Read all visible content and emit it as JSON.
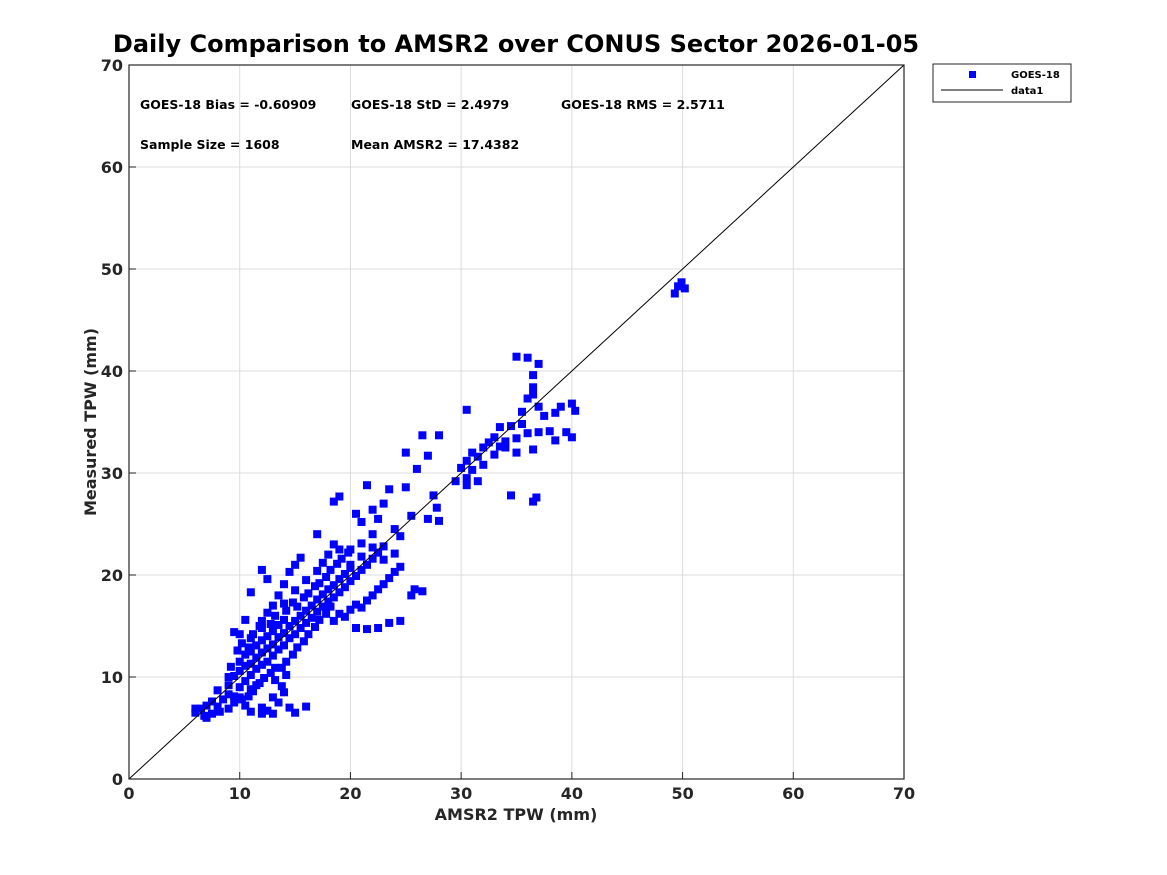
{
  "chart_data": {
    "type": "scatter",
    "title": "Daily Comparison to AMSR2 over CONUS Sector 2026-01-05",
    "xlabel": "AMSR2 TPW (mm)",
    "ylabel": "Measured TPW (mm)",
    "xlim": [
      0,
      70
    ],
    "ylim": [
      0,
      70
    ],
    "xticks": [
      "0",
      "10",
      "20",
      "30",
      "40",
      "50",
      "60",
      "70"
    ],
    "yticks": [
      "0",
      "10",
      "20",
      "30",
      "40",
      "50",
      "60",
      "70"
    ],
    "grid": true,
    "legend_position": "outside top-right",
    "legend": [
      {
        "name": "GOES-18",
        "kind": "marker"
      },
      {
        "name": "data1",
        "kind": "line"
      }
    ],
    "annotations": [
      "GOES-18 Bias = -0.60909",
      "GOES-18 StD = 2.4979",
      "GOES-18 RMS = 2.5711",
      "Sample Size = 1608",
      "Mean AMSR2 = 17.4382"
    ],
    "colors": {
      "marker": "#0000ff",
      "line": "#000000",
      "grid": "#dcdcdc",
      "axis": "#262626"
    },
    "reference_line": {
      "name": "data1",
      "x": [
        0,
        70
      ],
      "y": [
        0,
        70
      ]
    },
    "series": [
      {
        "name": "GOES-18",
        "marker": "square",
        "sample_size": 1608,
        "points": [
          [
            6.0,
            6.5
          ],
          [
            6.5,
            6.9
          ],
          [
            7.0,
            7.2
          ],
          [
            7.5,
            6.4
          ],
          [
            7.0,
            6.0
          ],
          [
            8.0,
            7.1
          ],
          [
            8.5,
            7.8
          ],
          [
            8.0,
            8.7
          ],
          [
            9.0,
            8.3
          ],
          [
            9.0,
            9.2
          ],
          [
            9.5,
            7.5
          ],
          [
            9.5,
            10.1
          ],
          [
            10.0,
            9.0
          ],
          [
            10.0,
            10.6
          ],
          [
            10.0,
            11.5
          ],
          [
            10.5,
            9.6
          ],
          [
            10.5,
            11.1
          ],
          [
            10.5,
            12.2
          ],
          [
            11.0,
            10.2
          ],
          [
            11.0,
            11.3
          ],
          [
            11.0,
            12.5
          ],
          [
            11.0,
            13.8
          ],
          [
            11.5,
            10.8
          ],
          [
            11.5,
            11.9
          ],
          [
            11.5,
            13.1
          ],
          [
            12.0,
            11.2
          ],
          [
            12.0,
            12.4
          ],
          [
            12.0,
            13.6
          ],
          [
            12.0,
            14.8
          ],
          [
            12.5,
            11.5
          ],
          [
            12.5,
            12.8
          ],
          [
            12.5,
            14.0
          ],
          [
            13.0,
            12.1
          ],
          [
            13.0,
            13.2
          ],
          [
            13.0,
            14.5
          ],
          [
            13.5,
            12.7
          ],
          [
            13.5,
            13.9
          ],
          [
            13.5,
            15.1
          ],
          [
            14.0,
            13.1
          ],
          [
            14.0,
            14.3
          ],
          [
            14.0,
            15.6
          ],
          [
            14.5,
            13.8
          ],
          [
            14.5,
            15.0
          ],
          [
            15.0,
            14.2
          ],
          [
            15.0,
            15.5
          ],
          [
            15.5,
            14.8
          ],
          [
            15.5,
            16.0
          ],
          [
            16.0,
            15.3
          ],
          [
            16.0,
            16.5
          ],
          [
            16.5,
            15.8
          ],
          [
            16.5,
            17.0
          ],
          [
            17.0,
            16.4
          ],
          [
            17.0,
            17.6
          ],
          [
            17.5,
            16.9
          ],
          [
            17.5,
            18.1
          ],
          [
            18.0,
            17.4
          ],
          [
            18.0,
            18.6
          ],
          [
            18.5,
            17.8
          ],
          [
            18.5,
            19.0
          ],
          [
            19.0,
            18.3
          ],
          [
            19.0,
            19.6
          ],
          [
            19.5,
            18.8
          ],
          [
            19.5,
            20.1
          ],
          [
            20.0,
            19.4
          ],
          [
            20.0,
            20.7
          ],
          [
            20.5,
            19.9
          ],
          [
            21.0,
            20.5
          ],
          [
            21.0,
            21.8
          ],
          [
            21.5,
            21.0
          ],
          [
            22.0,
            21.6
          ],
          [
            22.0,
            22.7
          ],
          [
            22.5,
            22.2
          ],
          [
            23.0,
            22.8
          ],
          [
            18.5,
            15.5
          ],
          [
            19.0,
            16.2
          ],
          [
            19.5,
            15.9
          ],
          [
            20.0,
            16.6
          ],
          [
            20.5,
            17.1
          ],
          [
            21.0,
            16.8
          ],
          [
            21.5,
            17.5
          ],
          [
            22.0,
            18.0
          ],
          [
            22.5,
            18.6
          ],
          [
            23.0,
            19.1
          ],
          [
            23.5,
            19.7
          ],
          [
            24.0,
            20.3
          ],
          [
            24.5,
            20.8
          ],
          [
            20.5,
            14.8
          ],
          [
            21.5,
            14.7
          ],
          [
            22.5,
            14.8
          ],
          [
            23.5,
            15.3
          ],
          [
            24.5,
            15.5
          ],
          [
            12.0,
            7.0
          ],
          [
            12.5,
            6.7
          ],
          [
            13.0,
            8.0
          ],
          [
            13.5,
            7.5
          ],
          [
            14.0,
            8.5
          ],
          [
            14.5,
            7.0
          ],
          [
            15.0,
            6.5
          ],
          [
            16.0,
            7.1
          ],
          [
            12.0,
            6.4
          ],
          [
            13.0,
            6.4
          ],
          [
            11.0,
            8.8
          ],
          [
            11.5,
            9.2
          ],
          [
            10.5,
            7.2
          ],
          [
            11.0,
            6.6
          ],
          [
            12.0,
            15.5
          ],
          [
            12.5,
            16.3
          ],
          [
            13.0,
            17.0
          ],
          [
            13.5,
            18.0
          ],
          [
            14.0,
            19.1
          ],
          [
            14.5,
            20.3
          ],
          [
            15.0,
            21.0
          ],
          [
            15.5,
            21.7
          ],
          [
            12.0,
            20.5
          ],
          [
            12.5,
            19.6
          ],
          [
            11.0,
            18.3
          ],
          [
            10.5,
            15.6
          ],
          [
            10.0,
            14.2
          ],
          [
            14.0,
            17.2
          ],
          [
            15.0,
            18.5
          ],
          [
            16.0,
            19.5
          ],
          [
            17.0,
            20.4
          ],
          [
            17.5,
            21.2
          ],
          [
            18.0,
            22.0
          ],
          [
            18.5,
            23.0
          ],
          [
            19.0,
            22.5
          ],
          [
            17.0,
            24.0
          ],
          [
            18.5,
            27.2
          ],
          [
            19.0,
            27.7
          ],
          [
            20.5,
            26.0
          ],
          [
            21.0,
            25.2
          ],
          [
            21.5,
            28.8
          ],
          [
            22.0,
            26.4
          ],
          [
            22.5,
            25.5
          ],
          [
            23.0,
            27.0
          ],
          [
            23.5,
            28.4
          ],
          [
            24.0,
            24.5
          ],
          [
            25.0,
            28.6
          ],
          [
            25.5,
            25.8
          ],
          [
            26.0,
            30.4
          ],
          [
            26.5,
            33.7
          ],
          [
            27.0,
            31.7
          ],
          [
            27.5,
            27.8
          ],
          [
            27.8,
            26.6
          ],
          [
            28.0,
            33.7
          ],
          [
            25.0,
            32.0
          ],
          [
            27.0,
            25.5
          ],
          [
            28.0,
            25.3
          ],
          [
            25.5,
            18.0
          ],
          [
            25.8,
            18.6
          ],
          [
            26.5,
            18.4
          ],
          [
            23.0,
            21.5
          ],
          [
            24.0,
            22.1
          ],
          [
            24.5,
            23.8
          ],
          [
            20.0,
            21.0
          ],
          [
            20.0,
            22.5
          ],
          [
            21.0,
            23.1
          ],
          [
            22.0,
            24.0
          ],
          [
            30.5,
            29.5
          ],
          [
            30.5,
            31.2
          ],
          [
            31.0,
            32.0
          ],
          [
            31.0,
            30.3
          ],
          [
            31.5,
            31.6
          ],
          [
            32.0,
            32.5
          ],
          [
            32.0,
            30.8
          ],
          [
            32.5,
            33.0
          ],
          [
            33.0,
            31.8
          ],
          [
            33.0,
            33.5
          ],
          [
            33.5,
            32.6
          ],
          [
            34.0,
            33.1
          ],
          [
            34.5,
            34.6
          ],
          [
            35.0,
            33.4
          ],
          [
            35.5,
            34.8
          ],
          [
            35.5,
            36.0
          ],
          [
            36.0,
            33.9
          ],
          [
            36.0,
            37.3
          ],
          [
            36.5,
            38.4
          ],
          [
            37.0,
            36.5
          ],
          [
            37.0,
            34.0
          ],
          [
            37.5,
            35.6
          ],
          [
            38.0,
            34.1
          ],
          [
            38.5,
            35.9
          ],
          [
            39.0,
            36.5
          ],
          [
            39.5,
            34.0
          ],
          [
            40.0,
            36.8
          ],
          [
            40.3,
            36.1
          ],
          [
            40.0,
            33.5
          ],
          [
            38.5,
            33.2
          ],
          [
            35.0,
            41.4
          ],
          [
            36.0,
            41.3
          ],
          [
            36.5,
            39.6
          ],
          [
            37.0,
            40.7
          ],
          [
            30.5,
            28.8
          ],
          [
            31.5,
            29.2
          ],
          [
            30.5,
            36.2
          ],
          [
            34.5,
            27.8
          ],
          [
            36.5,
            27.2
          ],
          [
            36.8,
            27.6
          ],
          [
            36.5,
            32.3
          ],
          [
            36.5,
            37.7
          ],
          [
            49.3,
            47.6
          ],
          [
            49.6,
            48.3
          ],
          [
            49.9,
            48.7
          ],
          [
            50.2,
            48.1
          ],
          [
            29.5,
            29.2
          ],
          [
            30.0,
            30.5
          ],
          [
            33.5,
            34.5
          ],
          [
            34.0,
            32.5
          ],
          [
            35.0,
            32.0
          ],
          [
            6.0,
            6.9
          ],
          [
            6.8,
            6.2
          ],
          [
            7.5,
            7.6
          ],
          [
            8.2,
            6.6
          ],
          [
            9.0,
            6.9
          ],
          [
            9.5,
            8.1
          ],
          [
            10.0,
            8.0
          ],
          [
            9.0,
            10.0
          ],
          [
            9.2,
            11.0
          ],
          [
            9.8,
            12.6
          ],
          [
            10.2,
            13.3
          ],
          [
            10.8,
            12.9
          ],
          [
            11.2,
            14.2
          ],
          [
            9.5,
            14.4
          ],
          [
            11.8,
            15.0
          ],
          [
            12.8,
            15.2
          ],
          [
            13.2,
            16.0
          ],
          [
            14.2,
            16.5
          ],
          [
            14.8,
            17.3
          ],
          [
            15.2,
            16.9
          ],
          [
            15.8,
            17.8
          ],
          [
            16.2,
            18.2
          ],
          [
            16.8,
            18.9
          ],
          [
            17.2,
            19.2
          ],
          [
            17.8,
            19.8
          ],
          [
            18.2,
            20.5
          ],
          [
            18.8,
            21.1
          ],
          [
            19.2,
            21.6
          ],
          [
            19.8,
            22.2
          ],
          [
            13.8,
            10.9
          ],
          [
            14.2,
            11.5
          ],
          [
            14.8,
            12.2
          ],
          [
            15.2,
            12.9
          ],
          [
            15.8,
            13.5
          ],
          [
            16.2,
            14.2
          ],
          [
            16.8,
            14.9
          ],
          [
            17.2,
            15.6
          ],
          [
            17.8,
            16.2
          ],
          [
            18.2,
            16.9
          ],
          [
            12.2,
            9.9
          ],
          [
            12.8,
            10.4
          ],
          [
            13.2,
            10.9
          ],
          [
            11.8,
            9.4
          ],
          [
            11.2,
            8.6
          ],
          [
            10.8,
            8.1
          ],
          [
            10.2,
            7.8
          ],
          [
            13.2,
            9.7
          ],
          [
            14.2,
            10.2
          ],
          [
            13.8,
            9.1
          ]
        ]
      }
    ]
  }
}
